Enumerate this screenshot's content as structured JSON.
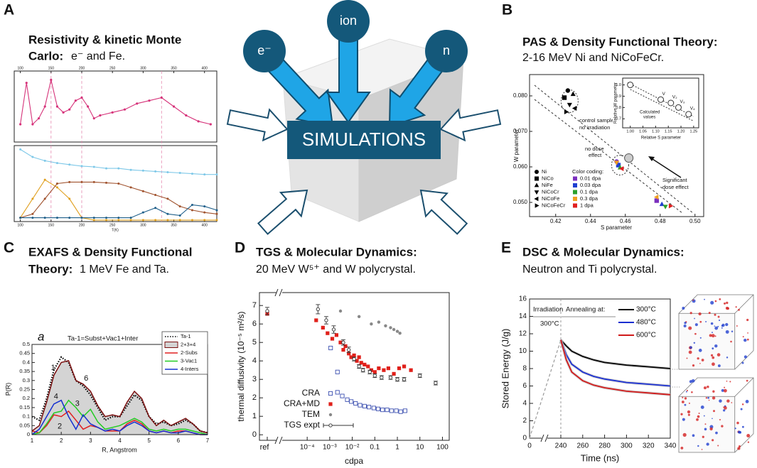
{
  "panel_a": {
    "letter": "A",
    "title": [
      "Resistivity & kinetic Monte",
      "Carlo:"
    ],
    "subtitle": "e⁻ and Fe.",
    "chart": {
      "type": "line",
      "xlabel": "T(K)",
      "xlim": [
        90,
        420
      ],
      "xticks": [
        100,
        150,
        200,
        250,
        300,
        350,
        400
      ],
      "top": {
        "ylim": [
          0,
          1.2
        ],
        "series": [
          {
            "color": "#d6337a",
            "x": [
              100,
              110,
              120,
              130,
              140,
              150,
              160,
              170,
              180,
              190,
              200,
              210,
              220,
              230,
              250,
              270,
              290,
              310,
              330,
              350,
              370,
              390,
              410
            ],
            "values": [
              0.3,
              1.0,
              0.3,
              0.4,
              0.6,
              1.05,
              0.6,
              0.5,
              0.55,
              0.7,
              0.75,
              0.6,
              0.4,
              0.45,
              0.5,
              0.55,
              0.65,
              0.7,
              0.75,
              0.6,
              0.45,
              0.35,
              0.3
            ]
          }
        ]
      },
      "bottom": {
        "ylim": [
          0,
          1
        ],
        "x": [
          100,
          120,
          140,
          160,
          180,
          200,
          220,
          240,
          260,
          280,
          300,
          320,
          340,
          360,
          380,
          400,
          420
        ],
        "series": [
          {
            "color": "#7ec8e8",
            "values": [
              0.95,
              0.85,
              0.8,
              0.77,
              0.75,
              0.73,
              0.72,
              0.7,
              0.7,
              0.68,
              0.67,
              0.66,
              0.65,
              0.64,
              0.63,
              0.62,
              0.62
            ]
          },
          {
            "color": "#e0a020",
            "values": [
              0.05,
              0.3,
              0.55,
              0.45,
              0.3,
              0.05,
              0.02,
              0.02,
              0.02,
              0.02,
              0.02,
              0.02,
              0.02,
              0.02,
              0.02,
              0.02,
              0.02
            ]
          },
          {
            "color": "#a0522d",
            "values": [
              0.05,
              0.1,
              0.3,
              0.5,
              0.52,
              0.52,
              0.52,
              0.51,
              0.5,
              0.45,
              0.4,
              0.35,
              0.3,
              0.2,
              0.15,
              0.12,
              0.1
            ]
          },
          {
            "color": "#1f5f8a",
            "values": [
              0.05,
              0.05,
              0.05,
              0.05,
              0.05,
              0.05,
              0.05,
              0.05,
              0.05,
              0.05,
              0.12,
              0.18,
              0.1,
              0.08,
              0.22,
              0.2,
              0.15
            ]
          }
        ]
      }
    }
  },
  "diagram": {
    "sources": [
      "e⁻",
      "ion",
      "n"
    ],
    "label": "SIMULATIONS"
  },
  "panel_b": {
    "letter": "B",
    "title": "PAS & Density Functional Theory:",
    "subtitle": "2-16 MeV Ni and NiCoFeCr.",
    "chart": {
      "type": "scatter",
      "xlabel": "S parameter",
      "ylabel": "W parameter",
      "xlim": [
        0.405,
        0.505
      ],
      "ylim": [
        0.046,
        0.086
      ],
      "xticks": [
        0.42,
        0.44,
        0.46,
        0.48,
        {
          "value": 0.5,
          "label": "0.50"
        }
      ],
      "yticks": [
        {
          "value": 0.05,
          "label": "0.050"
        },
        {
          "value": 0.06,
          "label": "0.060"
        },
        {
          "value": 0.07,
          "label": "0.070"
        },
        {
          "value": 0.08,
          "label": "0.080"
        }
      ],
      "annotations": [
        "control samples,",
        "no irradiation",
        "no dose",
        "effect",
        "Significant",
        "dose effect"
      ],
      "shape_legend": [
        "Ni",
        "NiCo",
        "NiFe",
        "NiCoCr",
        "NiCoFe",
        "NiCoFeCr"
      ],
      "color_legend_title": "Color coding:",
      "series": [
        {
          "name": "0.01 dpa",
          "color": "#7b2fbe",
          "x": [
            0.455,
            0.478
          ],
          "values": [
            0.0615,
            0.0505
          ]
        },
        {
          "name": "0.03 dpa",
          "color": "#1f3fd0",
          "x": [
            0.456,
            0.481
          ],
          "values": [
            0.0605,
            0.0495
          ]
        },
        {
          "name": "0.1 dpa",
          "color": "#2ca02c",
          "x": [
            0.457,
            0.483
          ],
          "values": [
            0.0598,
            0.0488
          ]
        },
        {
          "name": "0.3 dpa",
          "color": "#f0a020",
          "x": [
            0.455,
            0.478
          ],
          "values": [
            0.0612,
            0.0515
          ]
        },
        {
          "name": "1 dpa",
          "color": "#e02020",
          "x": [
            0.458,
            0.486
          ],
          "values": [
            0.0595,
            0.049
          ]
        }
      ],
      "control": {
        "color": "#000000",
        "x": [
          0.427,
          0.425,
          0.43,
          0.428,
          0.431,
          0.426
        ],
        "values": [
          0.0815,
          0.0795,
          0.0805,
          0.0775,
          0.0765,
          0.0755
        ]
      },
      "inset": {
        "xlabel": "Relative S parameter",
        "ylabel": "Relative W parameter",
        "xlim": [
          0.97,
          1.27
        ],
        "ylim": [
          0.62,
          1.06
        ],
        "xticks": [
          {
            "value": 1,
            "label": "1.00"
          },
          1.05,
          {
            "value": 1.1,
            "label": "1.10"
          },
          1.15,
          {
            "value": 1.2,
            "label": "1.20"
          },
          1.25
        ],
        "yticks": [
          0.7,
          0.8,
          0.9,
          {
            "value": 1,
            "label": "1.0"
          }
        ],
        "annotation": [
          "Calculated",
          "values"
        ],
        "labels": [
          "V",
          "V₂",
          "V₃",
          "V₄"
        ],
        "x": [
          1.0,
          1.12,
          1.16,
          1.19,
          1.23
        ],
        "values": [
          1.0,
          0.87,
          0.84,
          0.8,
          0.74
        ]
      }
    }
  },
  "panel_c": {
    "letter": "C",
    "title": [
      "EXAFS & Density Functional",
      "Theory:"
    ],
    "subtitle": "1 MeV Fe and Ta.",
    "chart": {
      "type": "line",
      "xlabel": "R, Angstrom",
      "ylabel": "P(R)",
      "xlim": [
        1,
        7
      ],
      "ylim": [
        0,
        0.5
      ],
      "xticks": [
        1,
        2,
        3,
        4,
        5,
        6,
        7
      ],
      "yticks": [
        0,
        0.05,
        0.1,
        0.15,
        0.2,
        0.25,
        0.3,
        0.35,
        0.4,
        0.45,
        0.5
      ],
      "annotation": "Ta-1=Subst+Vac1+Inter",
      "panel_tag": "a",
      "peak_labels": [
        "1",
        "4",
        "3",
        "2",
        "6"
      ],
      "x": [
        1,
        1.25,
        1.5,
        1.75,
        2,
        2.25,
        2.5,
        2.75,
        3,
        3.25,
        3.5,
        3.75,
        4,
        4.25,
        4.5,
        4.75,
        5,
        5.25,
        5.5,
        5.75,
        6,
        6.25,
        6.5,
        6.75,
        7
      ],
      "series": [
        {
          "name": "Ta-1",
          "color": "#000000",
          "values": [
            0.1,
            0.08,
            0.2,
            0.36,
            0.43,
            0.4,
            0.3,
            0.27,
            0.22,
            0.15,
            0.08,
            0.1,
            0.1,
            0.16,
            0.22,
            0.19,
            0.1,
            0.06,
            0.07,
            0.05,
            0.06,
            0.08,
            0.06,
            0.02,
            0.01
          ]
        },
        {
          "name": "2+3+4",
          "color": "#7a1010",
          "fill": "#d4d4d4",
          "values": [
            0.02,
            0.05,
            0.18,
            0.33,
            0.4,
            0.41,
            0.3,
            0.28,
            0.24,
            0.16,
            0.1,
            0.11,
            0.1,
            0.18,
            0.24,
            0.2,
            0.1,
            0.05,
            0.08,
            0.05,
            0.07,
            0.09,
            0.06,
            0.02,
            0.01
          ]
        },
        {
          "name": "2-Subs",
          "color": "#e02020",
          "values": [
            0.02,
            0.01,
            0.05,
            0.11,
            0.1,
            0.13,
            0.08,
            0.03,
            0.05,
            0.04,
            0.02,
            0.02,
            0.02,
            0.06,
            0.08,
            0.06,
            0.02,
            0.01,
            0.02,
            0.01,
            0.02,
            0.02,
            0.01,
            0,
            0
          ]
        },
        {
          "name": "3-Vac1",
          "color": "#22cc22",
          "values": [
            0,
            0.01,
            0.06,
            0.12,
            0.13,
            0.19,
            0.15,
            0.1,
            0.14,
            0.07,
            0.03,
            0.04,
            0.05,
            0.07,
            0.09,
            0.07,
            0.03,
            0.02,
            0.03,
            0.02,
            0.03,
            0.03,
            0.02,
            0.01,
            0
          ]
        },
        {
          "name": "4-Inters",
          "color": "#1530d0",
          "values": [
            0,
            0.03,
            0.1,
            0.17,
            0.19,
            0.1,
            0.03,
            0.11,
            0.06,
            0.04,
            0.02,
            0.03,
            0.02,
            0.05,
            0.07,
            0.05,
            0.02,
            0.01,
            0.02,
            0.01,
            0.01,
            0.02,
            0.01,
            0,
            0
          ]
        }
      ]
    }
  },
  "panel_d": {
    "letter": "D",
    "title": "TGS & Molecular Dynamics:",
    "subtitle": "20 MeV W⁵⁺ and W polycrystal.",
    "chart": {
      "type": "scatter",
      "xscale": "log",
      "xlabel": "cdpa",
      "ylabel": "thermal diffusivity (10⁻⁵ m²/s)",
      "ref_label": "ref",
      "xlim": [
        2e-05,
        200
      ],
      "ylim": [
        -0.3,
        7.7
      ],
      "xticks": [
        {
          "value": 0.0001,
          "label": "10⁻⁴"
        },
        {
          "value": 0.001,
          "label": "10⁻³"
        },
        {
          "value": 0.01,
          "label": "10⁻²"
        },
        0.1,
        1,
        10,
        100
      ],
      "yticks": [
        0,
        1,
        2,
        3,
        4,
        5,
        6,
        7
      ],
      "series": [
        {
          "name": "CRA",
          "color": "#3b4fb0",
          "marker": "open-square",
          "x": [
            0.0011,
            0.0022,
            0.0022,
            0.0036,
            0.006,
            0.009,
            0.014,
            0.022,
            0.035,
            0.055,
            0.09,
            0.14,
            0.22,
            0.35,
            0.55,
            0.9,
            1.4,
            2.2
          ],
          "values": [
            4.7,
            3.4,
            2.3,
            2.1,
            1.9,
            1.8,
            1.7,
            1.6,
            1.55,
            1.5,
            1.45,
            1.4,
            1.35,
            1.35,
            1.3,
            1.3,
            1.25,
            1.3
          ]
        },
        {
          "name": "CRA+MD",
          "color": "#e0201a",
          "marker": "square",
          "ref": 6.55,
          "x": [
            0.00025,
            0.0005,
            0.0008,
            0.0013,
            0.002,
            0.003,
            0.004,
            0.005,
            0.007,
            0.009,
            0.012,
            0.016,
            0.02,
            0.025,
            0.035,
            0.05,
            0.07,
            0.1,
            0.15,
            0.25,
            0.4,
            0.7,
            1.2,
            2,
            4
          ],
          "values": [
            6.2,
            5.8,
            5.5,
            5.2,
            5.4,
            5.0,
            4.6,
            4.8,
            4.4,
            4.2,
            4.3,
            4.0,
            4.2,
            3.9,
            3.8,
            3.7,
            3.5,
            3.4,
            3.6,
            3.5,
            3.6,
            3.3,
            3.6,
            3.7,
            3.5
          ]
        },
        {
          "name": "TEM",
          "color": "#888888",
          "marker": "dot",
          "x": [
            0.003,
            0.02,
            0.07,
            0.15,
            0.3,
            0.5,
            0.7,
            1.0,
            1.3
          ],
          "values": [
            6.7,
            6.4,
            6.0,
            6.1,
            5.9,
            5.8,
            5.7,
            5.6,
            5.5
          ]
        },
        {
          "name": "TGS expt",
          "color": "#333333",
          "marker": "open-circle",
          "ref": 6.7,
          "ref_error": 0.2,
          "x": [
            0.0003,
            0.0007,
            0.0015,
            0.004,
            0.007,
            0.012,
            0.02,
            0.03,
            0.06,
            0.1,
            0.2,
            0.5,
            1,
            2,
            10,
            50
          ],
          "values": [
            6.8,
            6.2,
            5.7,
            5.0,
            4.6,
            4.1,
            3.7,
            3.5,
            3.4,
            3.2,
            3.1,
            3.1,
            3.0,
            3.0,
            3.2,
            2.8
          ],
          "errors": [
            0.25,
            0.2,
            0.2,
            0.15,
            0.15,
            0.1,
            0.1,
            0.1,
            0.1,
            0.1,
            0.1,
            0.1,
            0.1,
            0.1,
            0.1,
            0.1
          ]
        }
      ]
    }
  },
  "panel_e": {
    "letter": "E",
    "title": "DSC & Molecular Dynamics:",
    "subtitle": "Neutron and Ti polycrystal.",
    "chart": {
      "type": "line",
      "xlabel": "Time (ns)",
      "ylabel": "Stored Energy (J/g)",
      "xlim": [
        0,
        340
      ],
      "ylim": [
        0,
        16
      ],
      "xticks": [
        0,
        240,
        260,
        280,
        300,
        320,
        340
      ],
      "yticks": [
        0,
        2,
        4,
        6,
        8,
        10,
        12,
        14,
        16
      ],
      "annotations": [
        "Irradiation",
        "Annealing at:",
        "300°C"
      ],
      "irradiation": {
        "x": [
          0,
          240
        ],
        "values": [
          0,
          11.3
        ]
      },
      "x": [
        240,
        245,
        250,
        260,
        270,
        280,
        300,
        320,
        340
      ],
      "series": [
        {
          "name": "300°C",
          "color": "#000000",
          "values": [
            11.3,
            10.6,
            10.0,
            9.4,
            9.0,
            8.7,
            8.4,
            8.2,
            8.0
          ]
        },
        {
          "name": "480°C",
          "color": "#1a2fd0",
          "values": [
            11.3,
            9.6,
            8.5,
            7.6,
            7.1,
            6.8,
            6.4,
            6.2,
            6.0
          ]
        },
        {
          "name": "600°C",
          "color": "#d01a1a",
          "values": [
            11.3,
            9.0,
            7.6,
            6.6,
            6.1,
            5.8,
            5.4,
            5.2,
            5.0
          ]
        }
      ]
    }
  }
}
